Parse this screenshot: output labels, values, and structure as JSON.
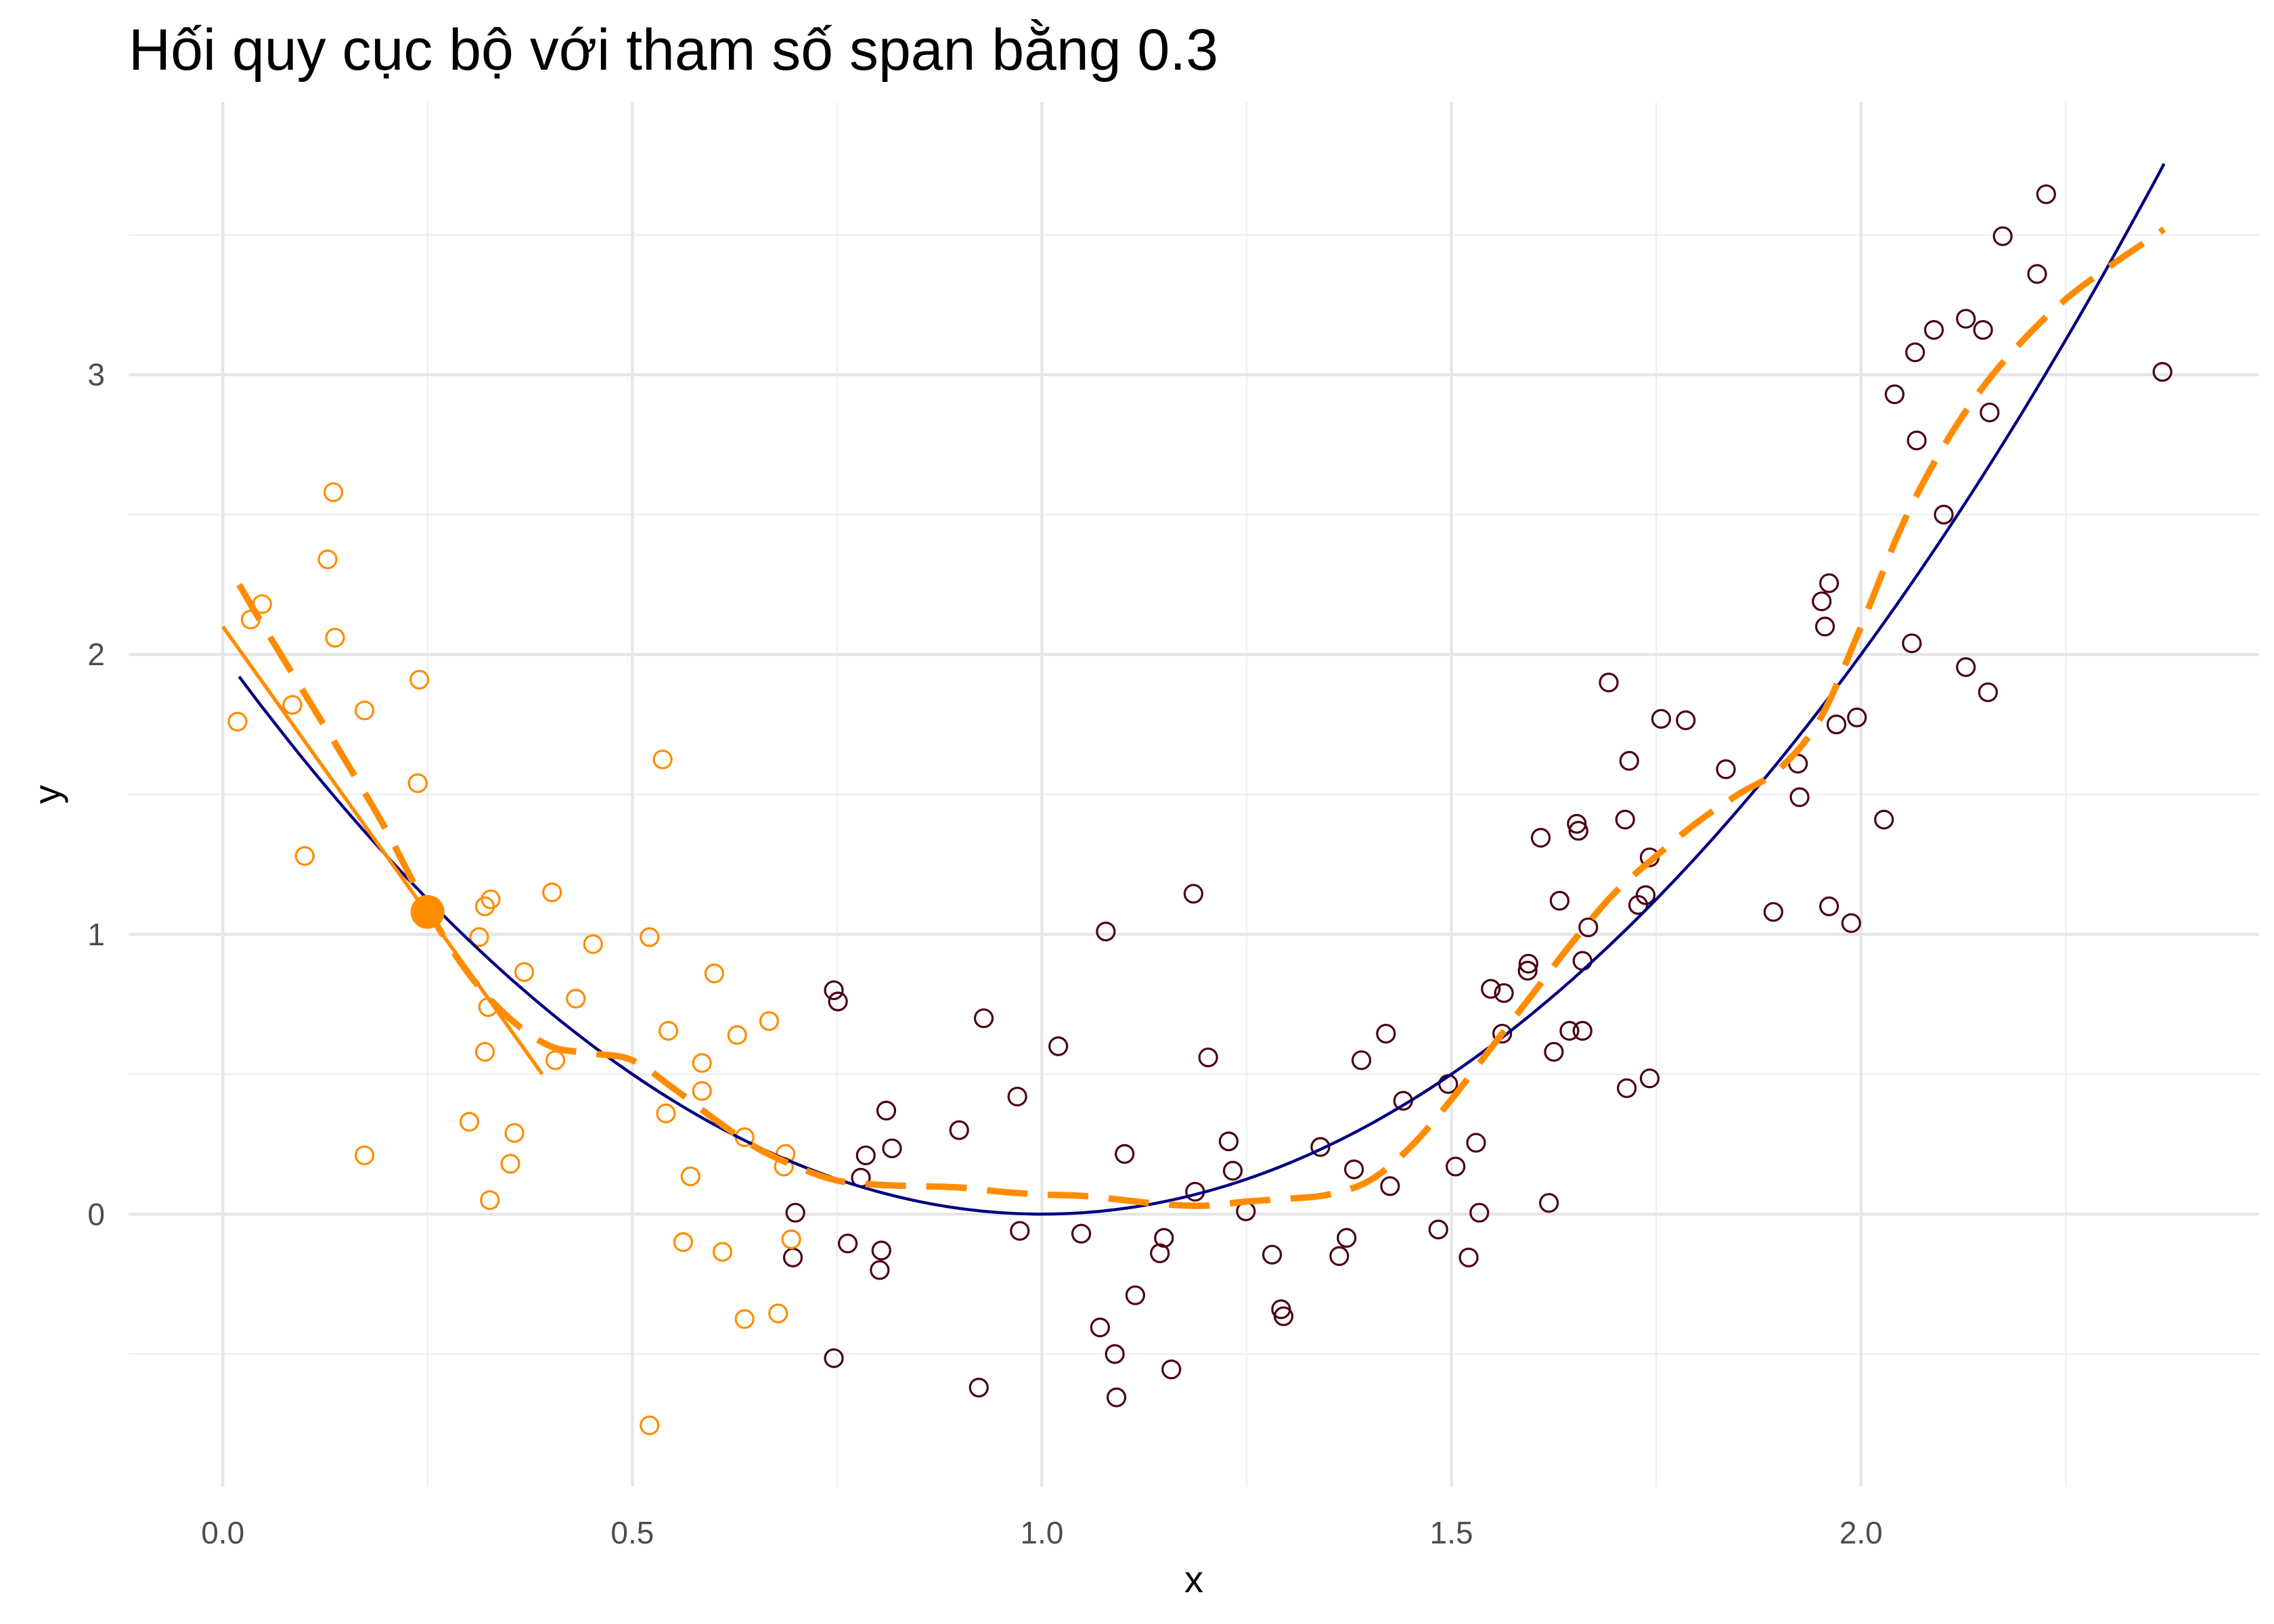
{
  "chart_data": {
    "type": "scatter",
    "title": "Hối quy cục bộ với tham số span bằng 0.3",
    "xlabel": "x",
    "ylabel": "y",
    "xlim": [
      -0.115,
      2.486
    ],
    "ylim": [
      -0.974,
      3.974
    ],
    "x_ticks": {
      "values": [
        0,
        0.5,
        1,
        1.5,
        2
      ],
      "labels": [
        "0.0",
        "0.5",
        "1.0",
        "1.5",
        "2.0"
      ]
    },
    "y_ticks": {
      "values": [
        0,
        1,
        2,
        3
      ],
      "labels": [
        "0",
        "1",
        "2",
        "3"
      ]
    },
    "grid": true,
    "legend": "none",
    "points_in_window": {
      "color": "#FF8C00",
      "marker": "open-circle",
      "x": [
        0.018,
        0.034,
        0.048,
        0.085,
        0.1,
        0.128,
        0.135,
        0.137,
        0.173,
        0.173,
        0.24,
        0.238,
        0.301,
        0.313,
        0.32,
        0.327,
        0.32,
        0.324,
        0.326,
        0.351,
        0.356,
        0.368,
        0.402,
        0.406,
        0.431,
        0.452,
        0.521,
        0.521,
        0.537,
        0.544,
        0.541,
        0.562,
        0.571,
        0.585,
        0.585,
        0.6,
        0.61,
        0.628,
        0.637,
        0.637,
        0.667,
        0.678,
        0.687,
        0.685,
        0.694
      ],
      "y": [
        1.76,
        2.125,
        2.18,
        1.82,
        1.28,
        2.34,
        2.58,
        2.06,
        1.8,
        0.21,
        1.91,
        1.54,
        0.33,
        0.99,
        1.1,
        1.125,
        0.58,
        0.74,
        0.05,
        0.18,
        0.29,
        0.865,
        1.15,
        0.55,
        0.77,
        0.965,
        0.99,
        -0.755,
        1.625,
        0.655,
        0.36,
        -0.1,
        0.135,
        0.54,
        0.44,
        0.86,
        -0.135,
        0.64,
        -0.375,
        0.275,
        0.69,
        -0.355,
        0.215,
        0.17,
        -0.09
      ]
    },
    "points_outside_window": {
      "color": "#4B0012",
      "marker": "open-circle",
      "x": [
        0.699,
        0.696,
        0.746,
        0.751,
        0.746,
        0.763,
        0.779,
        0.785,
        0.804,
        0.802,
        0.81,
        0.817,
        0.899,
        0.923,
        0.929,
        0.97,
        0.973,
        1.02,
        1.048,
        1.071,
        1.078,
        1.089,
        1.091,
        1.101,
        1.114,
        1.144,
        1.149,
        1.158,
        1.185,
        1.187,
        1.203,
        1.228,
        1.233,
        1.249,
        1.281,
        1.292,
        1.295,
        1.34,
        1.363,
        1.372,
        1.381,
        1.39,
        1.42,
        1.425,
        1.441,
        1.484,
        1.496,
        1.505,
        1.521,
        1.53,
        1.534,
        1.548,
        1.564,
        1.562,
        1.593,
        1.594,
        1.609,
        1.619,
        1.625,
        1.632,
        1.644,
        1.653,
        1.655,
        1.66,
        1.66,
        1.667,
        1.692,
        1.714,
        1.712,
        1.717,
        1.728,
        1.737,
        1.742,
        1.742,
        1.756,
        1.786,
        1.835,
        1.893,
        1.923,
        1.925,
        1.952,
        1.956,
        1.961,
        1.961,
        1.97,
        1.988,
        1.995,
        2.028,
        2.041,
        2.062,
        2.066,
        2.068,
        2.089,
        2.101,
        2.128,
        2.128,
        2.149,
        2.155,
        2.157,
        2.173,
        2.215,
        2.226,
        2.368
      ],
      "y": [
        0.005,
        -0.155,
        0.8,
        0.76,
        -0.515,
        -0.105,
        0.13,
        0.21,
        -0.13,
        -0.2,
        0.37,
        0.235,
        0.3,
        -0.62,
        0.7,
        0.42,
        -0.06,
        0.6,
        -0.07,
        -0.405,
        1.01,
        -0.5,
        -0.655,
        0.215,
        -0.29,
        -0.14,
        -0.085,
        -0.555,
        1.145,
        0.08,
        0.56,
        0.26,
        0.155,
        0.01,
        -0.145,
        -0.34,
        -0.365,
        0.24,
        -0.15,
        -0.085,
        0.16,
        0.55,
        0.645,
        0.1,
        0.405,
        -0.055,
        0.465,
        0.17,
        -0.155,
        0.255,
        0.005,
        0.805,
        0.79,
        0.645,
        0.87,
        0.895,
        1.345,
        0.04,
        0.58,
        1.12,
        0.655,
        1.395,
        1.37,
        0.655,
        0.905,
        1.025,
        1.9,
        0.45,
        1.41,
        1.62,
        1.105,
        1.14,
        1.275,
        0.485,
        1.77,
        1.765,
        1.59,
        1.08,
        1.61,
        1.49,
        2.19,
        2.1,
        2.255,
        1.1,
        1.75,
        1.04,
        1.775,
        1.41,
        2.93,
        2.04,
        3.08,
        2.765,
        3.16,
        2.5,
        1.955,
        3.2,
        3.16,
        1.865,
        2.865,
        3.495,
        3.36,
        3.645,
        3.01
      ]
    },
    "true_curve": {
      "color": "#000080",
      "linetype": "solid",
      "x": [
        0.02,
        0.05,
        0.1,
        0.15,
        0.2,
        0.25,
        0.3,
        0.35,
        0.4,
        0.45,
        0.5,
        0.55,
        0.6,
        0.65,
        0.7,
        0.75,
        0.8,
        0.85,
        0.9,
        0.95,
        1,
        1.05,
        1.1,
        1.15,
        1.2,
        1.25,
        1.3,
        1.35,
        1.4,
        1.45,
        1.5,
        1.55,
        1.6,
        1.65,
        1.7,
        1.75,
        1.8,
        1.85,
        1.9,
        1.95,
        2,
        2.05,
        2.1,
        2.15,
        2.2,
        2.25,
        2.3,
        2.35,
        2.37
      ],
      "y": [
        1.921,
        1.805,
        1.62,
        1.445,
        1.28,
        1.125,
        0.98,
        0.845,
        0.72,
        0.605,
        0.5,
        0.405,
        0.32,
        0.245,
        0.18,
        0.125,
        0.08,
        0.045,
        0.02,
        0.005,
        0,
        0.005,
        0.02,
        0.045,
        0.08,
        0.125,
        0.18,
        0.245,
        0.32,
        0.405,
        0.5,
        0.605,
        0.72,
        0.845,
        0.98,
        1.125,
        1.28,
        1.445,
        1.62,
        1.805,
        2,
        2.205,
        2.42,
        2.645,
        2.88,
        3.125,
        3.38,
        3.645,
        3.754
      ]
    },
    "local_linear_fit": {
      "color": "#FF8C00",
      "linetype": "solid",
      "x": [
        0.0,
        0.39
      ],
      "y": [
        2.1,
        0.5
      ]
    },
    "loess_fit": {
      "color": "#FF8C00",
      "linetype": "dashed",
      "x": [
        0.02,
        0.05,
        0.1,
        0.15,
        0.2,
        0.25,
        0.3,
        0.35,
        0.4,
        0.45,
        0.5,
        0.55,
        0.6,
        0.65,
        0.7,
        0.75,
        0.8,
        0.85,
        0.9,
        0.95,
        1,
        1.05,
        1.1,
        1.15,
        1.2,
        1.25,
        1.3,
        1.35,
        1.4,
        1.45,
        1.5,
        1.55,
        1.6,
        1.65,
        1.7,
        1.75,
        1.8,
        1.85,
        1.9,
        1.95,
        2,
        2.05,
        2.1,
        2.15,
        2.2,
        2.25,
        2.3,
        2.35,
        2.37
      ],
      "y": [
        2.25,
        2.1,
        1.86,
        1.62,
        1.37,
        1.09,
        0.86,
        0.7,
        0.6,
        0.575,
        0.55,
        0.45,
        0.34,
        0.24,
        0.17,
        0.12,
        0.105,
        0.1,
        0.095,
        0.08,
        0.07,
        0.065,
        0.05,
        0.035,
        0.03,
        0.045,
        0.055,
        0.07,
        0.12,
        0.24,
        0.41,
        0.6,
        0.79,
        0.98,
        1.15,
        1.28,
        1.4,
        1.5,
        1.59,
        1.77,
        2.1,
        2.46,
        2.74,
        2.96,
        3.13,
        3.27,
        3.38,
        3.48,
        3.52
      ]
    },
    "focal_point": {
      "color": "#FF8C00",
      "marker": "filled-circle",
      "x": 0.25,
      "y": 1.08
    }
  }
}
